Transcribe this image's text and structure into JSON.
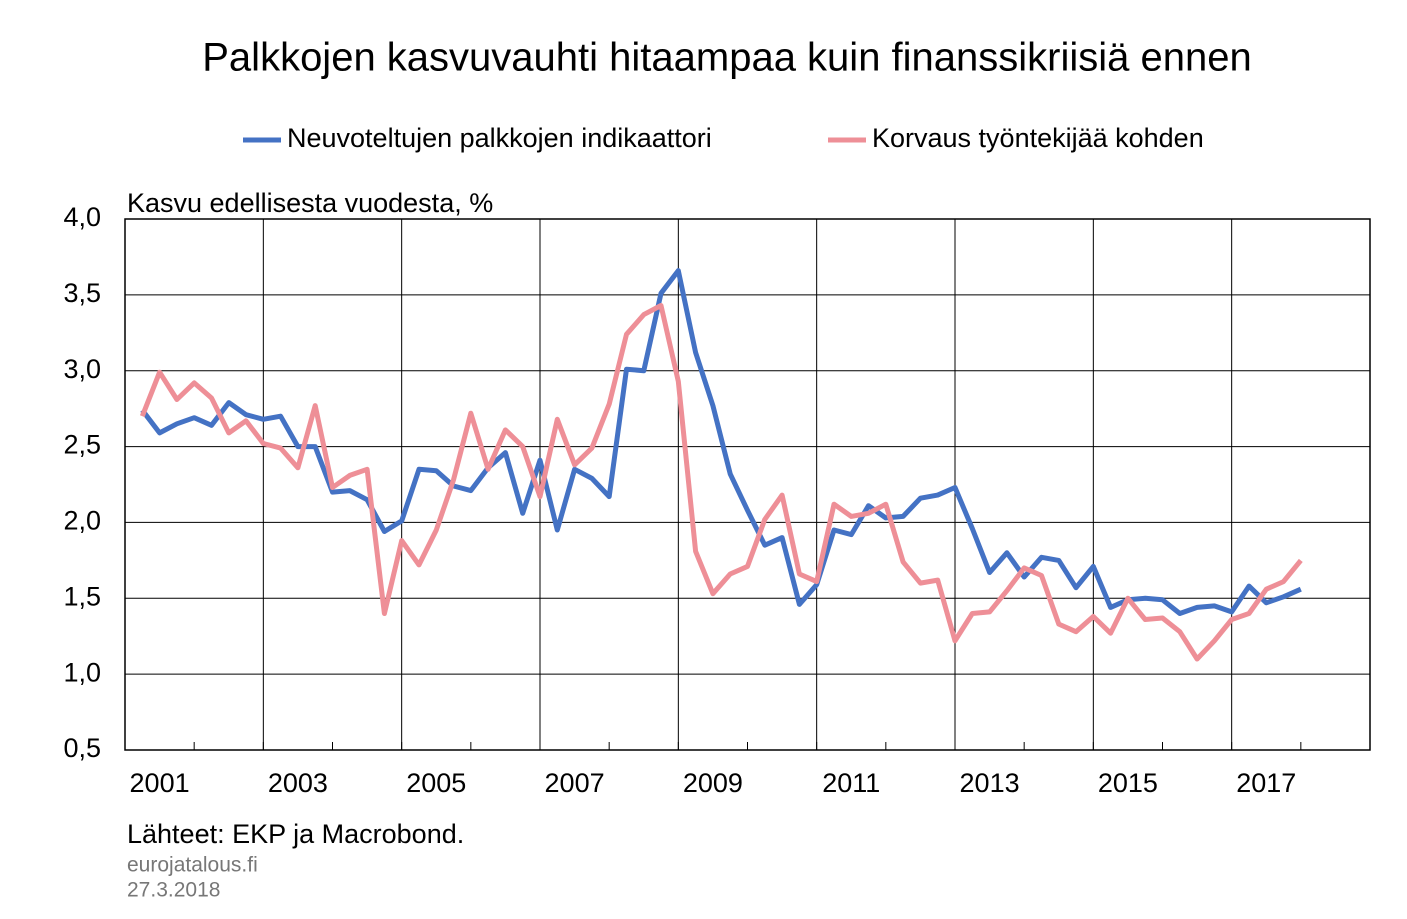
{
  "chart_data": {
    "type": "line",
    "title": "Palkkojen kasvuvauhti hitaampaa kuin finanssikriisiä ennen",
    "ylabel": "Kasvu edellisesta vuodesta,  %",
    "source": "Lähteet: EKP ja Macrobond.",
    "notes": [
      "eurojatalous.fi",
      "27.3.2018"
    ],
    "grid": true,
    "legend": "top",
    "xlim": [
      2001,
      2019
    ],
    "xticks": [
      {
        "value": 2001.5,
        "label": "2001"
      },
      {
        "value": 2003.5,
        "label": "2003"
      },
      {
        "value": 2005.5,
        "label": "2005"
      },
      {
        "value": 2007.5,
        "label": "2007"
      },
      {
        "value": 2009.5,
        "label": "2009"
      },
      {
        "value": 2011.5,
        "label": "2011"
      },
      {
        "value": 2013.5,
        "label": "2013"
      },
      {
        "value": 2015.5,
        "label": "2015"
      },
      {
        "value": 2017.5,
        "label": "2017"
      }
    ],
    "xgrid": [
      2003,
      2005,
      2007,
      2009,
      2011,
      2013,
      2015,
      2017
    ],
    "ylim": [
      0.5,
      4.0
    ],
    "yticks": [
      {
        "value": 0.5,
        "label": "0,5"
      },
      {
        "value": 1.0,
        "label": "1,0"
      },
      {
        "value": 1.5,
        "label": "1,5"
      },
      {
        "value": 2.0,
        "label": "2,0"
      },
      {
        "value": 2.5,
        "label": "2,5"
      },
      {
        "value": 3.0,
        "label": "3,0"
      },
      {
        "value": 3.5,
        "label": "3,5"
      },
      {
        "value": 4.0,
        "label": "4,0"
      }
    ],
    "x": [
      2001.25,
      2001.5,
      2001.75,
      2002,
      2002.25,
      2002.5,
      2002.75,
      2003,
      2003.25,
      2003.5,
      2003.75,
      2004,
      2004.25,
      2004.5,
      2004.75,
      2005,
      2005.25,
      2005.5,
      2005.75,
      2006,
      2006.25,
      2006.5,
      2006.75,
      2007,
      2007.25,
      2007.5,
      2007.75,
      2008,
      2008.25,
      2008.5,
      2008.75,
      2009,
      2009.25,
      2009.5,
      2009.75,
      2010,
      2010.25,
      2010.5,
      2010.75,
      2011,
      2011.25,
      2011.5,
      2011.75,
      2012,
      2012.25,
      2012.5,
      2012.75,
      2013,
      2013.25,
      2013.5,
      2013.75,
      2014,
      2014.25,
      2014.5,
      2014.75,
      2015,
      2015.25,
      2015.5,
      2015.75,
      2016,
      2016.25,
      2016.5,
      2016.75,
      2017,
      2017.25,
      2017.5,
      2017.75,
      2018
    ],
    "series": [
      {
        "name": "Neuvoteltujen palkkojen indikaattori",
        "color": "#4472c4",
        "values": [
          2.74,
          2.59,
          2.65,
          2.69,
          2.64,
          2.79,
          2.71,
          2.68,
          2.7,
          2.5,
          2.5,
          2.2,
          2.21,
          2.15,
          1.94,
          2.01,
          2.35,
          2.34,
          2.24,
          2.21,
          2.36,
          2.46,
          2.06,
          2.41,
          1.95,
          2.35,
          2.29,
          2.17,
          3.01,
          3.0,
          3.51,
          3.66,
          3.12,
          2.77,
          2.32,
          2.08,
          1.85,
          1.9,
          1.46,
          1.59,
          1.95,
          1.92,
          2.11,
          2.03,
          2.04,
          2.16,
          2.18,
          2.23,
          1.96,
          1.67,
          1.8,
          1.64,
          1.77,
          1.75,
          1.57,
          1.71,
          1.44,
          1.49,
          1.5,
          1.49,
          1.4,
          1.44,
          1.45,
          1.41,
          1.58,
          1.47,
          1.51,
          1.56
        ]
      },
      {
        "name": "Korvaus työntekijää kohden",
        "color": "#ee8f97",
        "values": [
          2.7,
          2.99,
          2.81,
          2.92,
          2.82,
          2.59,
          2.67,
          2.52,
          2.49,
          2.36,
          2.77,
          2.23,
          2.31,
          2.35,
          1.4,
          1.88,
          1.72,
          1.95,
          2.28,
          2.72,
          2.35,
          2.61,
          2.5,
          2.17,
          2.68,
          2.38,
          2.49,
          2.78,
          3.24,
          3.37,
          3.43,
          2.93,
          1.81,
          1.53,
          1.66,
          1.71,
          2.02,
          2.18,
          1.66,
          1.61,
          2.12,
          2.04,
          2.06,
          2.12,
          1.74,
          1.6,
          1.62,
          1.22,
          1.4,
          1.41,
          1.55,
          1.7,
          1.65,
          1.33,
          1.28,
          1.38,
          1.27,
          1.5,
          1.36,
          1.37,
          1.28,
          1.1,
          1.22,
          1.36,
          1.4,
          1.56,
          1.61,
          1.75
        ]
      }
    ]
  }
}
